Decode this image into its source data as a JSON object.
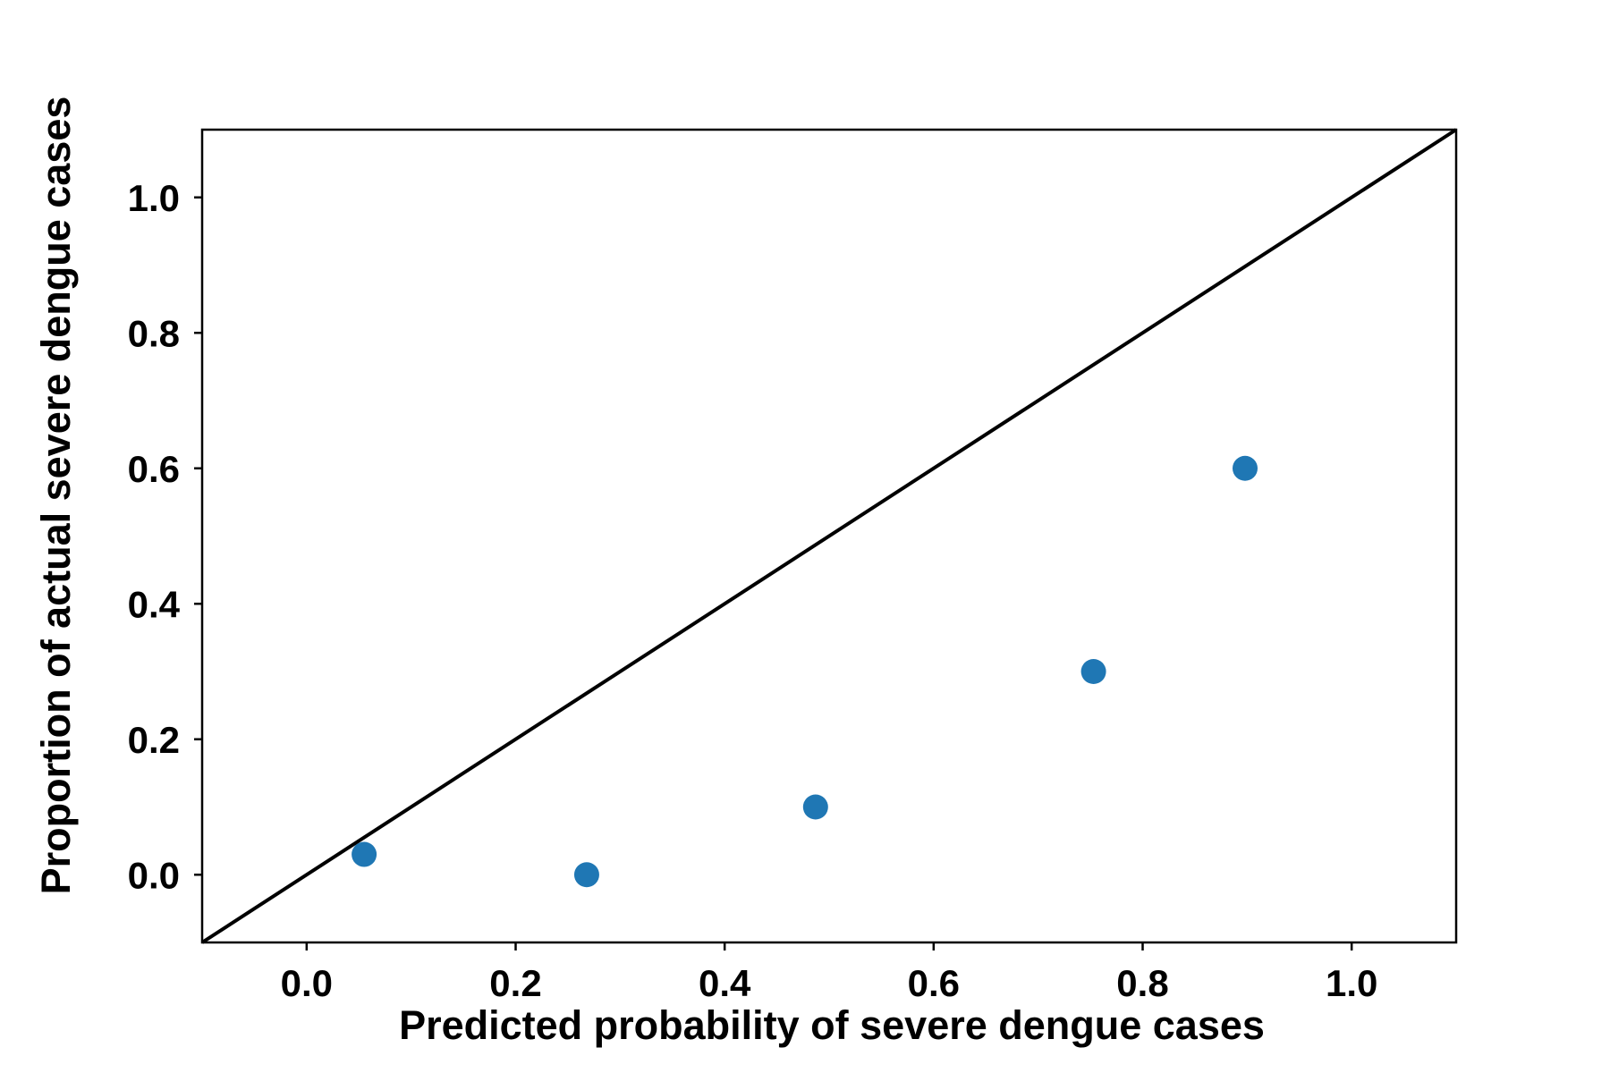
{
  "chart_data": {
    "type": "scatter",
    "title": "",
    "xlabel": "Predicted probability of severe dengue cases",
    "ylabel": "Proportion of actual severe dengue cases",
    "xlim": [
      -0.1,
      1.1
    ],
    "ylim": [
      -0.1,
      1.1
    ],
    "x_ticks": [
      "0.0",
      "0.2",
      "0.4",
      "0.6",
      "0.8",
      "1.0"
    ],
    "y_ticks": [
      "0.0",
      "0.2",
      "0.4",
      "0.6",
      "0.8",
      "1.0"
    ],
    "grid": false,
    "legend": "none",
    "reference_line": {
      "from": [
        -0.1,
        -0.1
      ],
      "to": [
        1.1,
        1.1
      ],
      "color": "#000000"
    },
    "series": [
      {
        "color": "#1f77b4",
        "x": [
          0.055,
          0.268,
          0.487,
          0.753,
          0.898
        ],
        "y": [
          0.03,
          0.0,
          0.1,
          0.3,
          0.6
        ]
      }
    ]
  }
}
